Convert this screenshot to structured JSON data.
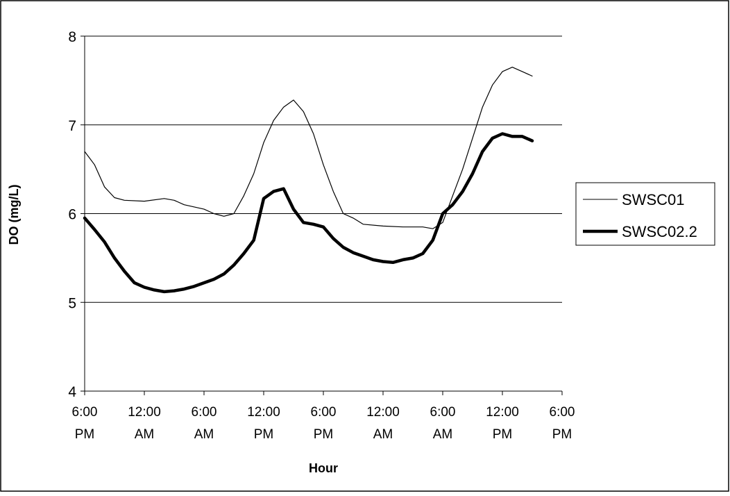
{
  "chart_data": {
    "type": "line",
    "title": "",
    "xlabel": "Hour",
    "ylabel": "DO (mg/L)",
    "ylim": [
      4,
      8
    ],
    "yticks": [
      "4",
      "5",
      "6",
      "7",
      "8"
    ],
    "x_tick_hours": [
      0,
      6,
      12,
      18,
      24,
      30,
      36,
      42,
      48
    ],
    "x_tick_labels": [
      [
        "6:00",
        "PM"
      ],
      [
        "12:00",
        "AM"
      ],
      [
        "6:00",
        "AM"
      ],
      [
        "12:00",
        "PM"
      ],
      [
        "6:00",
        "PM"
      ],
      [
        "12:00",
        "AM"
      ],
      [
        "6:00",
        "AM"
      ],
      [
        "12:00",
        "PM"
      ],
      [
        "6:00",
        "PM"
      ]
    ],
    "grid": "horizontal",
    "legend_position": "right",
    "series": [
      {
        "name": "SWSC01",
        "style": "thin",
        "color": "#000000",
        "points": [
          [
            0,
            6.7
          ],
          [
            1,
            6.55
          ],
          [
            2,
            6.3
          ],
          [
            3,
            6.18
          ],
          [
            4,
            6.15
          ],
          [
            6,
            6.14
          ],
          [
            8,
            6.17
          ],
          [
            9,
            6.15
          ],
          [
            10,
            6.1
          ],
          [
            12,
            6.05
          ],
          [
            13,
            6.0
          ],
          [
            14,
            5.97
          ],
          [
            15,
            6.0
          ],
          [
            16,
            6.2
          ],
          [
            17,
            6.45
          ],
          [
            18,
            6.8
          ],
          [
            19,
            7.05
          ],
          [
            20,
            7.2
          ],
          [
            21,
            7.28
          ],
          [
            22,
            7.15
          ],
          [
            23,
            6.9
          ],
          [
            24,
            6.55
          ],
          [
            25,
            6.25
          ],
          [
            26,
            6.0
          ],
          [
            27,
            5.95
          ],
          [
            28,
            5.88
          ],
          [
            30,
            5.86
          ],
          [
            32,
            5.85
          ],
          [
            34,
            5.85
          ],
          [
            35,
            5.83
          ],
          [
            36,
            5.9
          ],
          [
            37,
            6.2
          ],
          [
            38,
            6.5
          ],
          [
            39,
            6.85
          ],
          [
            40,
            7.2
          ],
          [
            41,
            7.45
          ],
          [
            42,
            7.6
          ],
          [
            43,
            7.65
          ],
          [
            44,
            7.6
          ],
          [
            45,
            7.55
          ]
        ]
      },
      {
        "name": "SWSC02.2",
        "style": "thick",
        "color": "#000000",
        "points": [
          [
            0,
            5.95
          ],
          [
            1,
            5.82
          ],
          [
            2,
            5.68
          ],
          [
            3,
            5.5
          ],
          [
            4,
            5.35
          ],
          [
            5,
            5.22
          ],
          [
            6,
            5.17
          ],
          [
            7,
            5.14
          ],
          [
            8,
            5.12
          ],
          [
            9,
            5.13
          ],
          [
            10,
            5.15
          ],
          [
            11,
            5.18
          ],
          [
            12,
            5.22
          ],
          [
            13,
            5.26
          ],
          [
            14,
            5.32
          ],
          [
            15,
            5.42
          ],
          [
            16,
            5.55
          ],
          [
            17,
            5.7
          ],
          [
            18,
            6.17
          ],
          [
            19,
            6.25
          ],
          [
            20,
            6.28
          ],
          [
            21,
            6.05
          ],
          [
            22,
            5.9
          ],
          [
            23,
            5.88
          ],
          [
            24,
            5.85
          ],
          [
            25,
            5.72
          ],
          [
            26,
            5.62
          ],
          [
            27,
            5.56
          ],
          [
            28,
            5.52
          ],
          [
            29,
            5.48
          ],
          [
            30,
            5.46
          ],
          [
            31,
            5.45
          ],
          [
            32,
            5.48
          ],
          [
            33,
            5.5
          ],
          [
            34,
            5.55
          ],
          [
            35,
            5.7
          ],
          [
            36,
            6.0
          ],
          [
            37,
            6.1
          ],
          [
            38,
            6.25
          ],
          [
            39,
            6.45
          ],
          [
            40,
            6.7
          ],
          [
            41,
            6.85
          ],
          [
            42,
            6.9
          ],
          [
            43,
            6.87
          ],
          [
            44,
            6.87
          ],
          [
            45,
            6.82
          ]
        ]
      }
    ]
  }
}
